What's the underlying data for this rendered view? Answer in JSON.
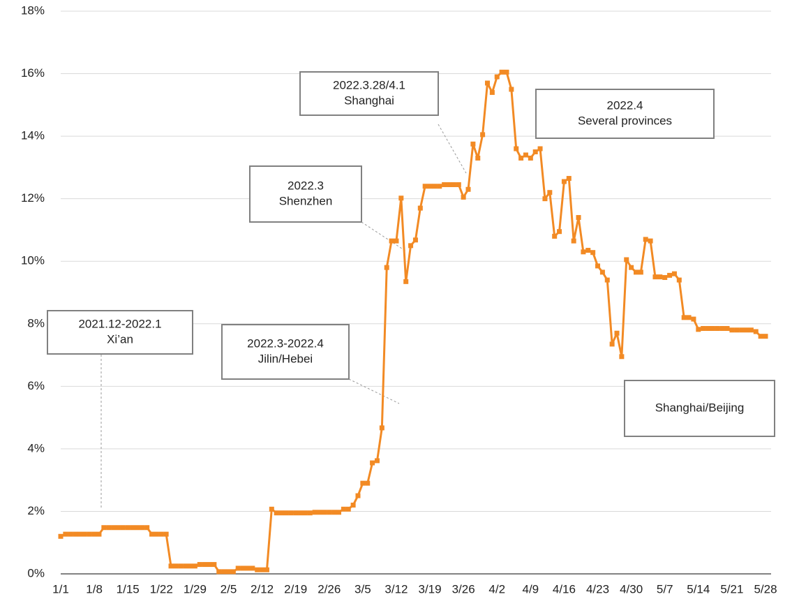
{
  "chart_data": {
    "type": "line",
    "categories": [
      "1/1",
      null,
      null,
      null,
      null,
      null,
      null,
      "1/8",
      null,
      null,
      null,
      null,
      null,
      null,
      "1/15",
      null,
      null,
      null,
      null,
      null,
      null,
      "1/22",
      null,
      null,
      null,
      null,
      null,
      null,
      "1/29",
      null,
      null,
      null,
      null,
      null,
      null,
      "2/5",
      null,
      null,
      null,
      null,
      null,
      null,
      "2/12",
      null,
      null,
      null,
      null,
      null,
      null,
      "2/19",
      null,
      null,
      null,
      null,
      null,
      null,
      "2/26",
      null,
      null,
      null,
      null,
      null,
      null,
      "3/5",
      null,
      null,
      null,
      null,
      null,
      null,
      "3/12",
      null,
      null,
      null,
      null,
      null,
      null,
      "3/19",
      null,
      null,
      null,
      null,
      null,
      null,
      "3/26",
      null,
      null,
      null,
      null,
      null,
      null,
      "4/2",
      null,
      null,
      null,
      null,
      null,
      null,
      "4/9",
      null,
      null,
      null,
      null,
      null,
      null,
      "4/16",
      null,
      null,
      null,
      null,
      null,
      null,
      "4/23",
      null,
      null,
      null,
      null,
      null,
      null,
      "4/30",
      null,
      null,
      null,
      null,
      null,
      null,
      "5/7",
      null,
      null,
      null,
      null,
      null,
      null,
      "5/14",
      null,
      null,
      null,
      null,
      null,
      null,
      "5/21",
      null,
      null,
      null,
      null,
      null,
      null,
      "5/28"
    ],
    "values": [
      1.2,
      1.27,
      1.27,
      1.27,
      1.27,
      1.27,
      1.27,
      1.27,
      1.27,
      1.48,
      1.48,
      1.48,
      1.48,
      1.48,
      1.48,
      1.48,
      1.48,
      1.48,
      1.48,
      1.27,
      1.27,
      1.27,
      1.27,
      0.25,
      0.25,
      0.25,
      0.25,
      0.25,
      0.25,
      0.3,
      0.3,
      0.3,
      0.3,
      0.07,
      0.07,
      0.07,
      0.07,
      0.18,
      0.18,
      0.18,
      0.18,
      0.13,
      0.13,
      0.13,
      2.07,
      1.95,
      1.95,
      1.95,
      1.95,
      1.95,
      1.95,
      1.95,
      1.95,
      1.97,
      1.97,
      1.97,
      1.97,
      1.97,
      1.97,
      2.07,
      2.07,
      2.2,
      2.5,
      2.9,
      2.9,
      3.55,
      3.62,
      4.67,
      9.8,
      10.65,
      10.65,
      12.02,
      9.35,
      10.5,
      10.68,
      11.7,
      12.4,
      12.4,
      12.4,
      12.4,
      12.45,
      12.45,
      12.45,
      12.45,
      12.05,
      12.3,
      13.75,
      13.3,
      14.05,
      15.7,
      15.4,
      15.9,
      16.05,
      16.05,
      15.5,
      13.6,
      13.3,
      13.4,
      13.3,
      13.5,
      13.6,
      12.0,
      12.2,
      10.8,
      10.95,
      12.55,
      12.65,
      10.65,
      11.4,
      10.3,
      10.35,
      10.28,
      9.85,
      9.65,
      9.4,
      7.35,
      7.7,
      6.95,
      10.05,
      9.8,
      9.65,
      9.65,
      10.7,
      10.65,
      9.5,
      9.5,
      9.48,
      9.55,
      9.6,
      9.4,
      8.2,
      8.2,
      8.15,
      7.82,
      7.85,
      7.85,
      7.85,
      7.85,
      7.85,
      7.85,
      7.8,
      7.8,
      7.8,
      7.8,
      7.8,
      7.75,
      7.6,
      7.6
    ],
    "color": "#f28a24",
    "ylim": [
      0,
      18
    ],
    "yticks": [
      {
        "value": 0,
        "label": "0%"
      },
      {
        "value": 2,
        "label": "2%"
      },
      {
        "value": 4,
        "label": "4%"
      },
      {
        "value": 6,
        "label": "6%"
      },
      {
        "value": 8,
        "label": "8%"
      },
      {
        "value": 10,
        "label": "10%"
      },
      {
        "value": 12,
        "label": "12%"
      },
      {
        "value": 14,
        "label": "14%"
      },
      {
        "value": 16,
        "label": "16%"
      },
      {
        "value": 18,
        "label": "18%"
      }
    ],
    "grid": true,
    "annotations": [
      {
        "lines": [
          "2021.12-2022.1",
          "Xi’an"
        ]
      },
      {
        "lines": [
          "2022.3-2022.4",
          "Jilin/Hebei"
        ]
      },
      {
        "lines": [
          "2022.3",
          "Shenzhen"
        ]
      },
      {
        "lines": [
          "2022.3.28/4.1",
          "Shanghai"
        ]
      },
      {
        "lines": [
          "2022.4",
          "Several provinces"
        ]
      },
      {
        "lines": [
          "Shanghai/Beijing"
        ]
      }
    ]
  }
}
